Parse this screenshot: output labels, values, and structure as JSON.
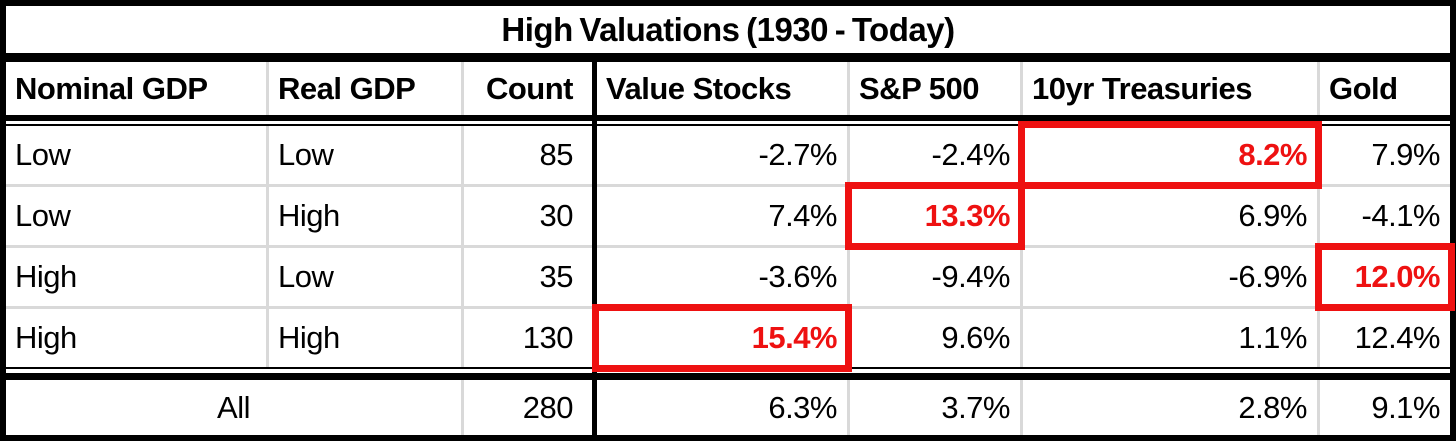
{
  "chart_data": {
    "type": "table",
    "title": "High Valuations (1930 - Today)",
    "columns": [
      "Nominal GDP",
      "Real GDP",
      "Count",
      "Value Stocks",
      "S&P 500",
      "10yr Treasuries",
      "Gold"
    ],
    "rows": [
      [
        "Low",
        "Low",
        "85",
        "-2.7%",
        "-2.4%",
        "8.2%",
        "7.9%"
      ],
      [
        "Low",
        "High",
        "30",
        "7.4%",
        "13.3%",
        "6.9%",
        "-4.1%"
      ],
      [
        "High",
        "Low",
        "35",
        "-3.6%",
        "-9.4%",
        "-6.9%",
        "12.0%"
      ],
      [
        "High",
        "High",
        "130",
        "15.4%",
        "9.6%",
        "1.1%",
        "12.4%"
      ],
      [
        "All",
        "",
        "280",
        "6.3%",
        "3.7%",
        "2.8%",
        "9.1%"
      ]
    ],
    "highlighted_cells": [
      {
        "row": 0,
        "column": "10yr Treasuries",
        "value": "8.2%"
      },
      {
        "row": 1,
        "column": "S&P 500",
        "value": "13.3%"
      },
      {
        "row": 2,
        "column": "Gold",
        "value": "12.0%"
      },
      {
        "row": 3,
        "column": "Value Stocks",
        "value": "15.4%"
      }
    ],
    "layout_notes": {
      "total_row_label_spans": "Nominal GDP + Real GDP columns",
      "heavy_divider_after_column": "Count"
    }
  },
  "colors": {
    "highlight_red": "#ee1111",
    "grid_line_gray": "#d9d9d9",
    "border_black": "#000000",
    "background": "#ffffff"
  }
}
